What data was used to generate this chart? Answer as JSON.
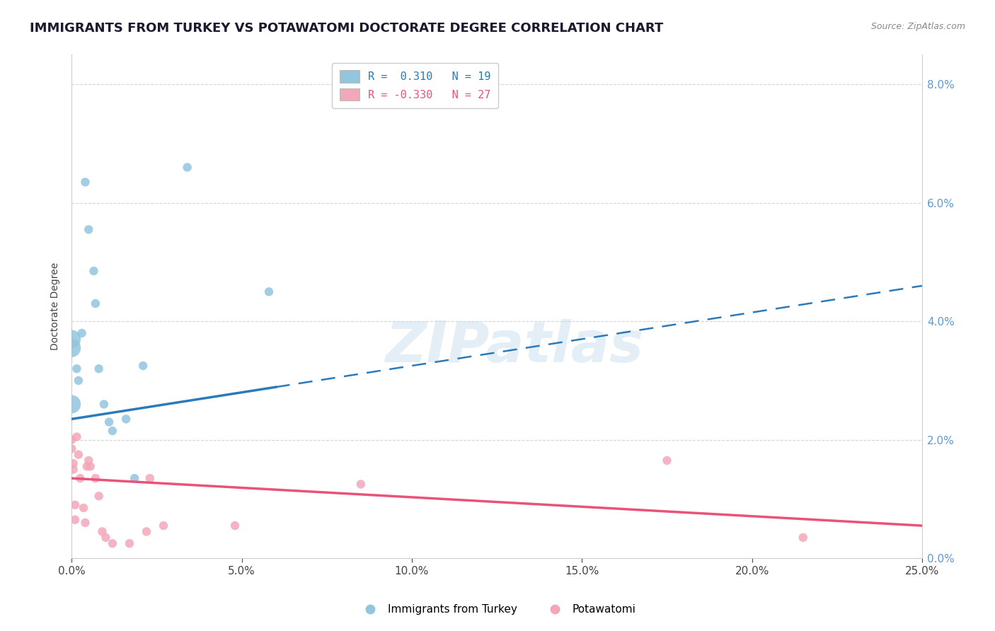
{
  "title": "IMMIGRANTS FROM TURKEY VS POTAWATOMI DOCTORATE DEGREE CORRELATION CHART",
  "source": "Source: ZipAtlas.com",
  "ylabel": "Doctorate Degree",
  "xmin": 0.0,
  "xmax": 25.0,
  "ymin": 0.0,
  "ymax": 8.5,
  "yplot_max": 8.0,
  "yticks": [
    0.0,
    2.0,
    4.0,
    6.0,
    8.0
  ],
  "xticks": [
    0.0,
    5.0,
    10.0,
    15.0,
    20.0,
    25.0
  ],
  "blue_R": 0.31,
  "blue_N": 19,
  "pink_R": -0.33,
  "pink_N": 27,
  "blue_color": "#92c5de",
  "pink_color": "#f4a7b9",
  "blue_line_color": "#2b7bba",
  "pink_line_color": "#e8537a",
  "blue_scatter": [
    [
      0.0,
      2.6
    ],
    [
      0.0,
      3.55
    ],
    [
      0.0,
      3.7
    ],
    [
      0.15,
      3.2
    ],
    [
      0.2,
      3.0
    ],
    [
      0.3,
      3.8
    ],
    [
      0.4,
      6.35
    ],
    [
      0.5,
      5.55
    ],
    [
      0.65,
      4.85
    ],
    [
      0.7,
      4.3
    ],
    [
      0.8,
      3.2
    ],
    [
      0.95,
      2.6
    ],
    [
      1.1,
      2.3
    ],
    [
      1.2,
      2.15
    ],
    [
      1.6,
      2.35
    ],
    [
      1.85,
      1.35
    ],
    [
      2.1,
      3.25
    ],
    [
      3.4,
      6.6
    ],
    [
      5.8,
      4.5
    ]
  ],
  "pink_scatter": [
    [
      0.0,
      2.0
    ],
    [
      0.0,
      1.85
    ],
    [
      0.05,
      1.6
    ],
    [
      0.05,
      1.5
    ],
    [
      0.1,
      0.9
    ],
    [
      0.1,
      0.65
    ],
    [
      0.15,
      2.05
    ],
    [
      0.2,
      1.75
    ],
    [
      0.25,
      1.35
    ],
    [
      0.35,
      0.85
    ],
    [
      0.4,
      0.6
    ],
    [
      0.45,
      1.55
    ],
    [
      0.5,
      1.65
    ],
    [
      0.55,
      1.55
    ],
    [
      0.7,
      1.35
    ],
    [
      0.8,
      1.05
    ],
    [
      0.9,
      0.45
    ],
    [
      1.0,
      0.35
    ],
    [
      1.2,
      0.25
    ],
    [
      1.7,
      0.25
    ],
    [
      2.2,
      0.45
    ],
    [
      2.3,
      1.35
    ],
    [
      2.7,
      0.55
    ],
    [
      4.8,
      0.55
    ],
    [
      8.5,
      1.25
    ],
    [
      17.5,
      1.65
    ],
    [
      21.5,
      0.35
    ]
  ],
  "blue_line_x1": 0.0,
  "blue_line_x2": 25.0,
  "blue_line_y1": 2.35,
  "blue_line_y2": 4.6,
  "blue_solid_end_x": 6.0,
  "blue_solid_end_y": 2.88,
  "pink_line_x1": 0.0,
  "pink_line_x2": 25.0,
  "pink_line_y1": 1.35,
  "pink_line_y2": 0.55,
  "watermark": "ZIPatlas",
  "title_fontsize": 13,
  "axis_label_fontsize": 10,
  "tick_fontsize": 11,
  "legend_fontsize": 11,
  "background_color": "#ffffff",
  "grid_color": "#d0d0d0",
  "tick_color": "#5b9bd5"
}
